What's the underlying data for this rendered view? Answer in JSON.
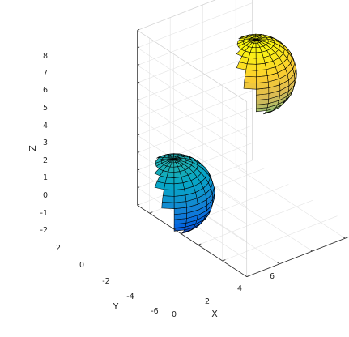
{
  "chart_data": {
    "type": "surface3d",
    "title": "",
    "xlabel": "X",
    "ylabel": "Y",
    "zlabel": "Z",
    "xlim": [
      0,
      7
    ],
    "ylim": [
      -6,
      3
    ],
    "zlim": [
      -2,
      8
    ],
    "xticks": [
      "0",
      "2",
      "4",
      "6"
    ],
    "yticks": [
      "2",
      "0",
      "-2",
      "-4",
      "-6"
    ],
    "zticks": [
      "8",
      "7",
      "6",
      "5",
      "4",
      "3",
      "2",
      "1",
      "0",
      "-1",
      "-2"
    ],
    "grid": true,
    "colormap": "parula",
    "colormap_stops": [
      "#352a87",
      "#0363e1",
      "#1485d4",
      "#06a7c6",
      "#38b99e",
      "#92bf73",
      "#d9ba56",
      "#fcce2e",
      "#f9fb0e"
    ],
    "edge_color": "#000000",
    "series": [
      {
        "center": [
          0,
          0,
          0
        ],
        "radius": 2
      },
      {
        "center": [
          5,
          0,
          5
        ],
        "radius": 2
      }
    ]
  }
}
